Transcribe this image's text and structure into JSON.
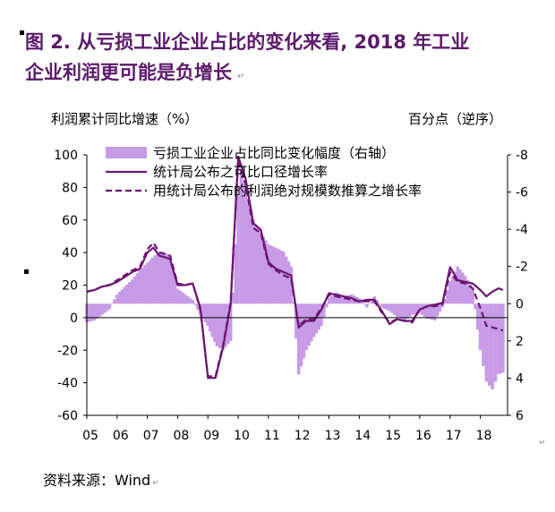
{
  "title": {
    "line1": "图 2. 从亏损工业企业占比的变化来看, 2018 年工业",
    "line2": "企业利润更可能是负增长"
  },
  "source": "资料来源：Wind",
  "colors": {
    "title": "#5b1a6a",
    "bars": "#c79be6",
    "line_solid": "#6b1570",
    "line_dashed": "#6b1570",
    "axis": "#000000"
  },
  "chart_data": {
    "type": "bar+line",
    "left_axis_label": "利润累计同比增速（%）",
    "right_axis_label": "百分点（逆序）",
    "left_ylim": [
      -60,
      100
    ],
    "left_ticks": [
      100,
      80,
      60,
      40,
      20,
      0,
      -20,
      -40,
      -60
    ],
    "right_ylim": [
      6,
      -8
    ],
    "right_ticks": [
      -8,
      -6,
      -4,
      -2,
      0,
      2,
      4,
      6
    ],
    "x_tick_labels": [
      "05",
      "06",
      "07",
      "08",
      "09",
      "10",
      "11",
      "12",
      "13",
      "14",
      "15",
      "16",
      "17",
      "18"
    ],
    "x_range": [
      2005.0,
      2018.9
    ],
    "legend": [
      {
        "name": "亏损工业企业占比同比变化幅度（右轴）",
        "kind": "bar"
      },
      {
        "name": "统计局公布之可比口径增长率",
        "kind": "line"
      },
      {
        "name": "用统计局公布的利润绝对规模数推算之增长率",
        "kind": "dashed"
      }
    ],
    "bar_series": {
      "name": "亏损工业企业占比同比变化幅度（右轴）",
      "axis": "right",
      "points": [
        [
          2005.0,
          1.0
        ],
        [
          2005.25,
          0.9
        ],
        [
          2005.5,
          0.6
        ],
        [
          2005.75,
          0.3
        ],
        [
          2006.0,
          -0.5
        ],
        [
          2006.25,
          -0.9
        ],
        [
          2006.5,
          -1.3
        ],
        [
          2006.75,
          -1.8
        ],
        [
          2007.0,
          -2.2
        ],
        [
          2007.25,
          -2.6
        ],
        [
          2007.5,
          -2.8
        ],
        [
          2007.75,
          -2.6
        ],
        [
          2008.0,
          -0.8
        ],
        [
          2008.25,
          -0.5
        ],
        [
          2008.5,
          -0.2
        ],
        [
          2008.75,
          0.6
        ],
        [
          2009.0,
          1.2
        ],
        [
          2009.15,
          1.8
        ],
        [
          2009.3,
          2.3
        ],
        [
          2009.5,
          2.5
        ],
        [
          2009.75,
          2.0
        ],
        [
          2010.0,
          -5.8
        ],
        [
          2010.1,
          -7.0
        ],
        [
          2010.25,
          -6.2
        ],
        [
          2010.5,
          -4.5
        ],
        [
          2010.75,
          -3.8
        ],
        [
          2011.0,
          -3.2
        ],
        [
          2011.25,
          -3.0
        ],
        [
          2011.5,
          -2.8
        ],
        [
          2011.75,
          -2.0
        ],
        [
          2012.0,
          3.8
        ],
        [
          2012.25,
          2.5
        ],
        [
          2012.5,
          1.8
        ],
        [
          2012.75,
          1.2
        ],
        [
          2013.0,
          -0.3
        ],
        [
          2013.25,
          -0.6
        ],
        [
          2013.5,
          -0.4
        ],
        [
          2013.75,
          -0.5
        ],
        [
          2014.0,
          -0.3
        ],
        [
          2014.25,
          0.2
        ],
        [
          2014.5,
          -0.4
        ],
        [
          2014.75,
          0.2
        ],
        [
          2015.0,
          0.4
        ],
        [
          2015.25,
          0.7
        ],
        [
          2015.5,
          0.9
        ],
        [
          2015.75,
          0.6
        ],
        [
          2016.0,
          0.5
        ],
        [
          2016.25,
          0.8
        ],
        [
          2016.5,
          0.9
        ],
        [
          2016.75,
          0.2
        ],
        [
          2017.0,
          -1.2
        ],
        [
          2017.25,
          -2.0
        ],
        [
          2017.5,
          -1.5
        ],
        [
          2017.75,
          -0.8
        ],
        [
          2018.0,
          2.5
        ],
        [
          2018.2,
          4.2
        ],
        [
          2018.4,
          4.6
        ],
        [
          2018.6,
          3.8
        ],
        [
          2018.75,
          3.7
        ]
      ]
    },
    "line_series": [
      {
        "name": "统计局公布之可比口径增长率",
        "style": "solid",
        "points": [
          [
            2005.0,
            16
          ],
          [
            2005.25,
            17
          ],
          [
            2005.5,
            19
          ],
          [
            2005.75,
            20
          ],
          [
            2006.0,
            22
          ],
          [
            2006.25,
            25
          ],
          [
            2006.5,
            28
          ],
          [
            2006.75,
            30
          ],
          [
            2007.0,
            40
          ],
          [
            2007.2,
            43
          ],
          [
            2007.4,
            38
          ],
          [
            2007.6,
            37
          ],
          [
            2007.75,
            36
          ],
          [
            2008.0,
            20
          ],
          [
            2008.25,
            20
          ],
          [
            2008.5,
            21
          ],
          [
            2008.75,
            6
          ],
          [
            2009.0,
            -37
          ],
          [
            2009.25,
            -37
          ],
          [
            2009.5,
            -18
          ],
          [
            2009.75,
            8
          ],
          [
            2010.0,
            99
          ],
          [
            2010.25,
            85
          ],
          [
            2010.5,
            58
          ],
          [
            2010.75,
            54
          ],
          [
            2011.0,
            34
          ],
          [
            2011.25,
            30
          ],
          [
            2011.5,
            28
          ],
          [
            2011.75,
            26
          ],
          [
            2012.0,
            -6
          ],
          [
            2012.25,
            -2
          ],
          [
            2012.5,
            -2
          ],
          [
            2012.75,
            5
          ],
          [
            2013.0,
            15
          ],
          [
            2013.25,
            14
          ],
          [
            2013.5,
            13
          ],
          [
            2013.75,
            12
          ],
          [
            2014.0,
            10
          ],
          [
            2014.25,
            11
          ],
          [
            2014.5,
            11
          ],
          [
            2014.75,
            4
          ],
          [
            2015.0,
            -4
          ],
          [
            2015.25,
            -1
          ],
          [
            2015.5,
            -2
          ],
          [
            2015.75,
            -2
          ],
          [
            2016.0,
            5
          ],
          [
            2016.25,
            7
          ],
          [
            2016.5,
            8
          ],
          [
            2016.75,
            9
          ],
          [
            2017.0,
            31
          ],
          [
            2017.25,
            23
          ],
          [
            2017.5,
            22
          ],
          [
            2017.75,
            21
          ],
          [
            2018.0,
            17
          ],
          [
            2018.2,
            13
          ],
          [
            2018.4,
            16
          ],
          [
            2018.6,
            18
          ],
          [
            2018.75,
            17
          ]
        ]
      },
      {
        "name": "用统计局公布的利润绝对规模数推算之增长率",
        "style": "dashed",
        "points": [
          [
            2005.0,
            16
          ],
          [
            2005.25,
            17
          ],
          [
            2005.5,
            19
          ],
          [
            2005.75,
            20
          ],
          [
            2006.0,
            23
          ],
          [
            2006.25,
            26
          ],
          [
            2006.5,
            29
          ],
          [
            2006.75,
            31
          ],
          [
            2007.0,
            42
          ],
          [
            2007.2,
            46
          ],
          [
            2007.4,
            40
          ],
          [
            2007.6,
            39
          ],
          [
            2007.75,
            38
          ],
          [
            2008.0,
            21
          ],
          [
            2008.25,
            20
          ],
          [
            2008.5,
            21
          ],
          [
            2008.75,
            5
          ],
          [
            2009.0,
            -36
          ],
          [
            2009.25,
            -36
          ],
          [
            2009.5,
            -17
          ],
          [
            2009.75,
            9
          ],
          [
            2010.0,
            96
          ],
          [
            2010.25,
            82
          ],
          [
            2010.5,
            55
          ],
          [
            2010.75,
            52
          ],
          [
            2011.0,
            33
          ],
          [
            2011.25,
            29
          ],
          [
            2011.5,
            26
          ],
          [
            2011.75,
            24
          ],
          [
            2012.0,
            -5
          ],
          [
            2012.25,
            -1
          ],
          [
            2012.5,
            -1
          ],
          [
            2012.75,
            6
          ],
          [
            2013.0,
            14
          ],
          [
            2013.25,
            13
          ],
          [
            2013.5,
            12
          ],
          [
            2013.75,
            11
          ],
          [
            2014.0,
            10
          ],
          [
            2014.25,
            10
          ],
          [
            2014.5,
            10
          ],
          [
            2014.75,
            3
          ],
          [
            2015.0,
            -3
          ],
          [
            2015.25,
            -1
          ],
          [
            2015.5,
            -2
          ],
          [
            2015.75,
            -3
          ],
          [
            2016.0,
            5
          ],
          [
            2016.25,
            7
          ],
          [
            2016.5,
            7
          ],
          [
            2016.75,
            8
          ],
          [
            2017.0,
            28
          ],
          [
            2017.25,
            22
          ],
          [
            2017.5,
            21
          ],
          [
            2017.75,
            18
          ],
          [
            2018.0,
            6
          ],
          [
            2018.2,
            -5
          ],
          [
            2018.4,
            -6
          ],
          [
            2018.6,
            -7
          ],
          [
            2018.75,
            -8
          ]
        ]
      }
    ]
  }
}
